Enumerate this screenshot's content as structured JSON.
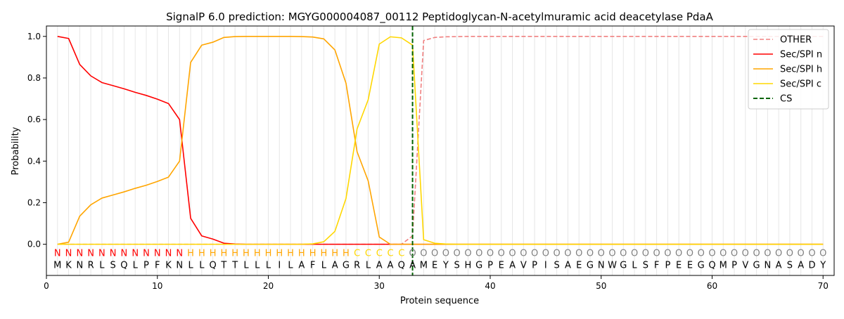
{
  "chart_data": {
    "type": "line",
    "title": "SignalP 6.0 prediction: MGYG000004087_00112 Peptidoglycan-N-acetylmuramic acid deacetylase PdaA",
    "xlabel": "Protein sequence",
    "ylabel": "Probability",
    "xlim": [
      0,
      71
    ],
    "ylim": [
      -0.15,
      1.05
    ],
    "xticks": [
      0,
      10,
      20,
      30,
      40,
      50,
      60,
      70
    ],
    "yticks": [
      0.0,
      0.2,
      0.4,
      0.6,
      0.8,
      1.0
    ],
    "xtick_labels": [
      "0",
      "10",
      "20",
      "30",
      "40",
      "50",
      "60",
      "70"
    ],
    "ytick_labels": [
      "0.0",
      "0.2",
      "0.4",
      "0.6",
      "0.8",
      "1.0"
    ],
    "legend_position": "top-right",
    "grid": "vertical lines at each residue",
    "sequence": [
      "M",
      "K",
      "N",
      "R",
      "L",
      "S",
      "Q",
      "L",
      "P",
      "F",
      "K",
      "N",
      "L",
      "L",
      "Q",
      "T",
      "T",
      "L",
      "L",
      "L",
      "I",
      "L",
      "A",
      "F",
      "L",
      "A",
      "G",
      "R",
      "L",
      "A",
      "A",
      "Q",
      "A",
      "M",
      "E",
      "Y",
      "S",
      "H",
      "G",
      "P",
      "E",
      "A",
      "V",
      "P",
      "I",
      "S",
      "A",
      "E",
      "G",
      "N",
      "W",
      "G",
      "L",
      "S",
      "F",
      "P",
      "E",
      "E",
      "G",
      "Q",
      "M",
      "P",
      "V",
      "G",
      "N",
      "A",
      "S",
      "A",
      "D",
      "Y"
    ],
    "region_labels": [
      "N",
      "N",
      "N",
      "N",
      "N",
      "N",
      "N",
      "N",
      "N",
      "N",
      "N",
      "N",
      "H",
      "H",
      "H",
      "H",
      "H",
      "H",
      "H",
      "H",
      "H",
      "H",
      "H",
      "H",
      "H",
      "H",
      "H",
      "C",
      "C",
      "C",
      "C",
      "C",
      "O",
      "O",
      "O",
      "O",
      "O",
      "O",
      "O",
      "O",
      "O",
      "O",
      "O",
      "O",
      "O",
      "O",
      "O",
      "O",
      "O",
      "O",
      "O",
      "O",
      "O",
      "O",
      "O",
      "O",
      "O",
      "O",
      "O",
      "O",
      "O",
      "O",
      "O",
      "O",
      "O",
      "O",
      "O",
      "O",
      "O",
      "O"
    ],
    "region_colors": {
      "N": "#ff0000",
      "H": "#ffa500",
      "C": "#ffd700",
      "O": "#808080"
    },
    "series": [
      {
        "name": "OTHER",
        "color": "#f08080",
        "dash": true,
        "values": [
          0.0,
          0.0,
          0.0,
          0.0,
          0.0,
          0.0,
          0.0,
          0.0,
          0.0,
          0.0,
          0.0,
          0.0,
          0.0,
          0.0,
          0.0,
          0.0,
          0.0,
          0.0,
          0.0,
          0.0,
          0.0,
          0.0,
          0.0,
          0.0,
          0.0,
          0.0,
          0.0,
          0.0,
          0.0,
          0.0,
          0.0,
          0.0,
          0.04,
          0.98,
          0.995,
          0.998,
          0.999,
          1.0,
          1.0,
          1.0,
          1.0,
          1.0,
          1.0,
          1.0,
          1.0,
          1.0,
          1.0,
          1.0,
          1.0,
          1.0,
          1.0,
          1.0,
          1.0,
          1.0,
          1.0,
          1.0,
          1.0,
          1.0,
          1.0,
          1.0,
          1.0,
          1.0,
          1.0,
          1.0,
          1.0,
          1.0,
          1.0,
          1.0,
          1.0,
          1.0
        ]
      },
      {
        "name": "Sec/SPI n",
        "color": "#ff0000",
        "dash": false,
        "values": [
          1.0,
          0.99,
          0.865,
          0.81,
          0.778,
          0.763,
          0.748,
          0.731,
          0.716,
          0.698,
          0.677,
          0.6,
          0.125,
          0.04,
          0.025,
          0.005,
          0.001,
          0.0,
          0.0,
          0.0,
          0.0,
          0.0,
          0.0,
          0.0,
          0.0,
          0.0,
          0.0,
          0.0,
          0.0,
          0.0,
          0.0,
          0.0,
          0.0,
          0.0,
          0.0,
          0.0,
          0.0,
          0.0,
          0.0,
          0.0,
          0.0,
          0.0,
          0.0,
          0.0,
          0.0,
          0.0,
          0.0,
          0.0,
          0.0,
          0.0,
          0.0,
          0.0,
          0.0,
          0.0,
          0.0,
          0.0,
          0.0,
          0.0,
          0.0,
          0.0,
          0.0,
          0.0,
          0.0,
          0.0,
          0.0,
          0.0,
          0.0,
          0.0,
          0.0,
          0.0
        ]
      },
      {
        "name": "Sec/SPI h",
        "color": "#ffa500",
        "dash": false,
        "values": [
          0.0,
          0.01,
          0.135,
          0.19,
          0.222,
          0.237,
          0.252,
          0.269,
          0.284,
          0.302,
          0.323,
          0.4,
          0.875,
          0.958,
          0.972,
          0.995,
          0.999,
          1.0,
          1.0,
          1.0,
          1.0,
          1.0,
          0.999,
          0.997,
          0.988,
          0.935,
          0.775,
          0.445,
          0.305,
          0.035,
          0.0,
          0.0,
          0.0,
          0.0,
          0.0,
          0.0,
          0.0,
          0.0,
          0.0,
          0.0,
          0.0,
          0.0,
          0.0,
          0.0,
          0.0,
          0.0,
          0.0,
          0.0,
          0.0,
          0.0,
          0.0,
          0.0,
          0.0,
          0.0,
          0.0,
          0.0,
          0.0,
          0.0,
          0.0,
          0.0,
          0.0,
          0.0,
          0.0,
          0.0,
          0.0,
          0.0,
          0.0,
          0.0,
          0.0,
          0.0
        ]
      },
      {
        "name": "Sec/SPI c",
        "color": "#ffd700",
        "dash": false,
        "values": [
          0.0,
          0.0,
          0.0,
          0.0,
          0.0,
          0.0,
          0.0,
          0.0,
          0.0,
          0.0,
          0.0,
          0.0,
          0.0,
          0.0,
          0.0,
          0.0,
          0.0,
          0.0,
          0.0,
          0.0,
          0.0,
          0.0,
          0.0,
          0.002,
          0.012,
          0.062,
          0.22,
          0.555,
          0.695,
          0.963,
          0.998,
          0.993,
          0.958,
          0.022,
          0.005,
          0.001,
          0.0,
          0.0,
          0.0,
          0.0,
          0.0,
          0.0,
          0.0,
          0.0,
          0.0,
          0.0,
          0.0,
          0.0,
          0.0,
          0.0,
          0.0,
          0.0,
          0.0,
          0.0,
          0.0,
          0.0,
          0.0,
          0.0,
          0.0,
          0.0,
          0.0,
          0.0,
          0.0,
          0.0,
          0.0,
          0.0,
          0.0,
          0.0,
          0.0,
          0.0
        ]
      },
      {
        "name": "CS",
        "color": "#006400",
        "dash": true,
        "type": "vline",
        "x": 33
      }
    ]
  }
}
